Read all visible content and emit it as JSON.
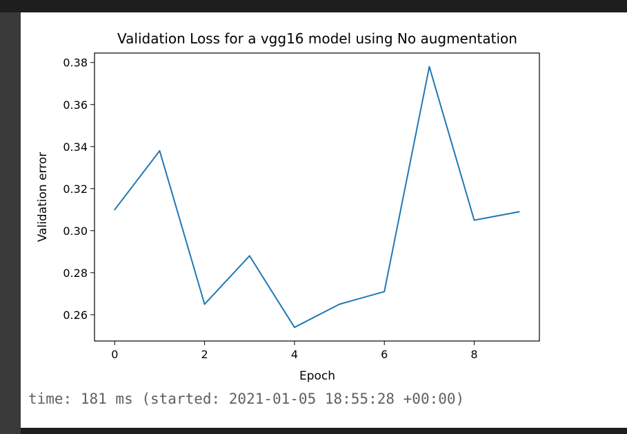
{
  "output": {
    "timing_text": "time: 181 ms (started: 2021-01-05 18:55:28 +00:00)"
  },
  "chart_data": {
    "type": "line",
    "title": "Validation Loss for a vgg16 model using No augmentation",
    "xlabel": "Epoch",
    "ylabel": "Validation error",
    "xlim": [
      -0.45,
      9.45
    ],
    "ylim": [
      0.2475,
      0.3845
    ],
    "x_ticks": [
      0,
      2,
      4,
      6,
      8
    ],
    "y_ticks": [
      0.26,
      0.28,
      0.3,
      0.32,
      0.34,
      0.36,
      0.38
    ],
    "x_tick_labels": [
      "0",
      "2",
      "4",
      "6",
      "8"
    ],
    "y_tick_labels": [
      "0.26",
      "0.28",
      "0.30",
      "0.32",
      "0.34",
      "0.36",
      "0.38"
    ],
    "grid": false,
    "line_color": "#1f77b4",
    "x": [
      0,
      1,
      2,
      3,
      4,
      5,
      6,
      7,
      8,
      9
    ],
    "values": [
      0.31,
      0.338,
      0.265,
      0.288,
      0.254,
      0.265,
      0.271,
      0.378,
      0.305,
      0.309
    ]
  }
}
